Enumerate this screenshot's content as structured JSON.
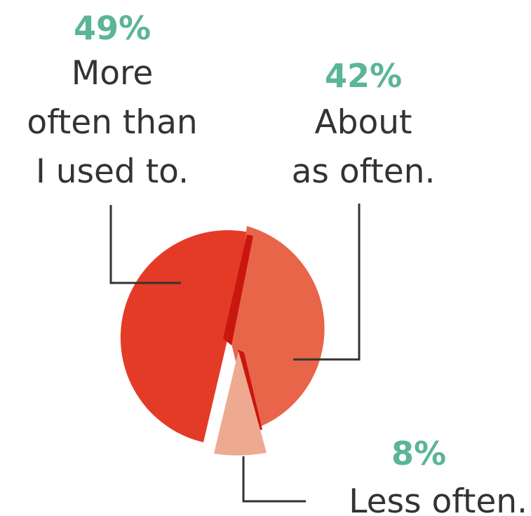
{
  "chart_data": {
    "type": "pie",
    "slices": [
      {
        "percent_label": "49%",
        "label_lines": [
          "More",
          "often than",
          "I used to."
        ],
        "value": 49,
        "color": "#e43b26"
      },
      {
        "percent_label": "42%",
        "label_lines": [
          "About",
          "as often."
        ],
        "value": 42,
        "color": "#e8654a"
      },
      {
        "percent_label": "8%",
        "label_lines": [
          "Less often."
        ],
        "value": 8,
        "color": "#eeaa90"
      }
    ],
    "overlap_color": "#c8170f",
    "percent_color": "#5bb597",
    "leader_color": "#333333"
  }
}
